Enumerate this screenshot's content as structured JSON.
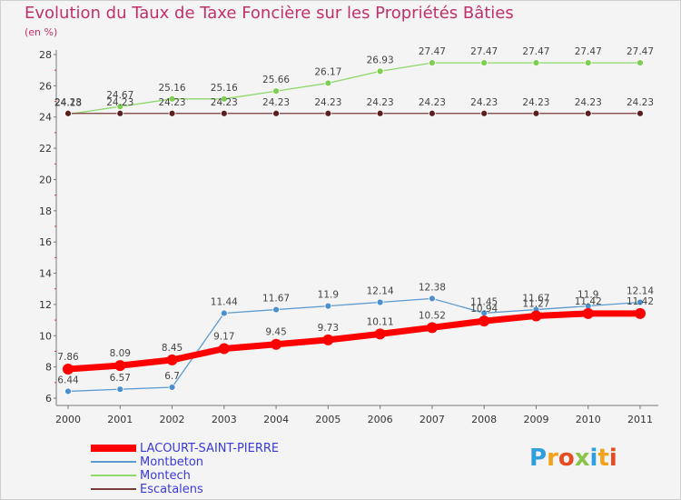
{
  "chart_data": {
    "type": "line",
    "title": "Evolution du Taux de Taxe Foncière sur les Propriétés Bâties",
    "subtitle": "(en %)",
    "categories": [
      "2000",
      "2001",
      "2002",
      "2003",
      "2004",
      "2005",
      "2006",
      "2007",
      "2008",
      "2009",
      "2010",
      "2011"
    ],
    "ylim": [
      6,
      28
    ],
    "yticks": [
      6,
      8,
      10,
      12,
      14,
      16,
      18,
      20,
      22,
      24,
      26,
      28
    ],
    "grid": false,
    "legend_position": "bottom-left",
    "series": [
      {
        "name": "LACOURT-SAINT-PIERRE",
        "color": "#ff0000",
        "values": [
          7.86,
          8.09,
          8.45,
          9.17,
          9.45,
          9.73,
          10.11,
          10.52,
          10.94,
          11.27,
          11.42,
          11.42
        ],
        "labels": [
          "7.86",
          "8.09",
          "8.45",
          "9.17",
          "9.45",
          "9.73",
          "10.11",
          "10.52",
          "10.94",
          "11.27",
          "11.42",
          "11.42"
        ]
      },
      {
        "name": "Montbeton",
        "color": "#5c9bd1",
        "values": [
          6.44,
          6.57,
          6.7,
          11.44,
          11.67,
          11.9,
          12.14,
          12.38,
          11.45,
          11.67,
          11.9,
          12.14
        ],
        "labels": [
          "6.44",
          "6.57",
          "6.7",
          "11.44",
          "11.67",
          "11.9",
          "12.14",
          "12.38",
          "11.45",
          "11.67",
          "11.9",
          "12.14"
        ]
      },
      {
        "name": "Montech",
        "color": "#8fd86b",
        "values": [
          24.18,
          24.67,
          25.16,
          25.16,
          25.66,
          26.17,
          26.93,
          27.47,
          27.47,
          27.47,
          27.47,
          27.47
        ],
        "labels": [
          "24.18",
          "24.67",
          "25.16",
          "25.16",
          "25.66",
          "26.17",
          "26.93",
          "27.47",
          "27.47",
          "27.47",
          "27.47",
          "27.47"
        ]
      },
      {
        "name": "Escatalens",
        "color": "#7a3b3b",
        "values": [
          24.23,
          24.23,
          24.23,
          24.23,
          24.23,
          24.23,
          24.23,
          24.23,
          24.23,
          24.23,
          24.23,
          24.23
        ],
        "labels": [
          "24.23",
          "24.23",
          "24.23",
          "24.23",
          "24.23",
          "24.23",
          "24.23",
          "24.23",
          "24.23",
          "24.23",
          "24.23",
          "24.23"
        ]
      }
    ]
  },
  "logo": {
    "text": "Proxiti",
    "letters": [
      {
        "char": "P",
        "color": "#2f9fe0"
      },
      {
        "char": "r",
        "color": "#f2a21b"
      },
      {
        "char": "o",
        "color": "#e84a22"
      },
      {
        "char": "x",
        "color": "#8bc34a"
      },
      {
        "char": "i",
        "color": "#2f9fe0"
      },
      {
        "char": "t",
        "color": "#f2a21b"
      },
      {
        "char": "i",
        "color": "#e84a22"
      }
    ]
  }
}
